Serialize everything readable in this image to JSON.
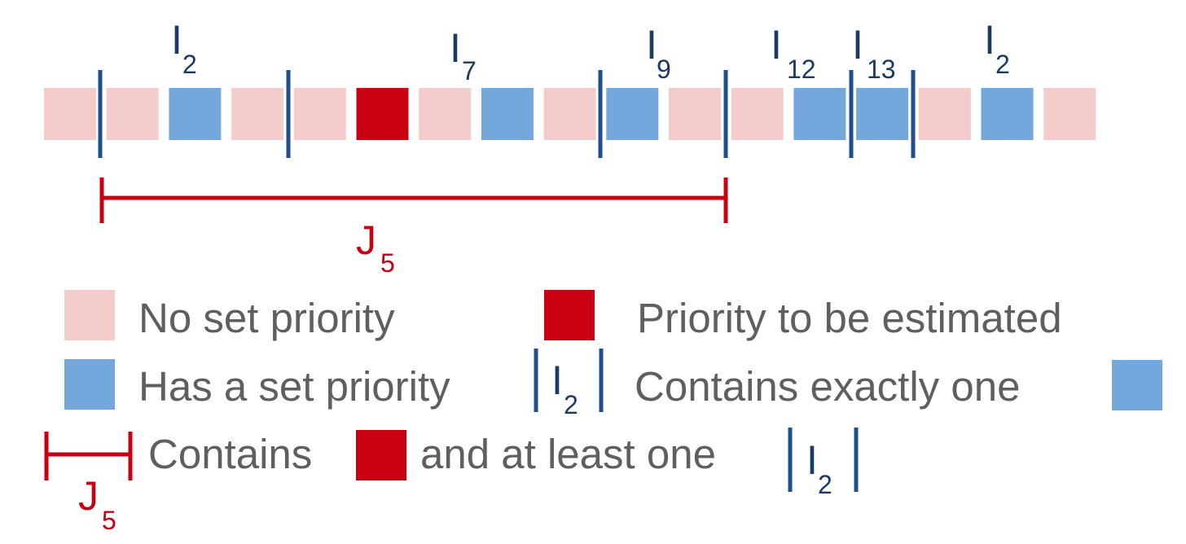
{
  "colors": {
    "no_set_priority": "#f4cccc",
    "has_set_priority": "#74a7db",
    "to_be_estimated": "#c80012",
    "interval": "#1f4f8f",
    "interval_text": "#1b3a66",
    "j_bracket": "#c80012",
    "legend_text": "#5f5f5f"
  },
  "sequence": [
    "none",
    "none",
    "set",
    "none",
    "none",
    "est",
    "none",
    "set",
    "none",
    "set",
    "none",
    "none",
    "set",
    "set",
    "none",
    "set",
    "none"
  ],
  "boundaries": [
    123,
    354,
    737,
    891,
    1045,
    1121
  ],
  "interval_labels": [
    {
      "letter": "I",
      "sub": "2"
    },
    {
      "letter": "I",
      "sub": "7"
    },
    {
      "letter": "I",
      "sub": "9"
    },
    {
      "letter": "I",
      "sub": "12"
    },
    {
      "letter": "I",
      "sub": "13"
    },
    {
      "letter": "I",
      "sub": "2"
    }
  ],
  "j_bracket": {
    "letter": "J",
    "sub": "5"
  },
  "legend": {
    "no_set_priority": "No set priority",
    "priority_to_be_estimated": "Priority to be estimated",
    "has_set_priority": "Has a set priority",
    "interval_symbol": {
      "letter": "I",
      "sub": "2"
    },
    "contains_exactly_one": "Contains exactly one",
    "j_symbol": {
      "letter": "J",
      "sub": "5"
    },
    "contains": "Contains",
    "and_at_least_one": "and at least one",
    "interval_symbol_2": {
      "letter": "I",
      "sub": "2"
    }
  }
}
